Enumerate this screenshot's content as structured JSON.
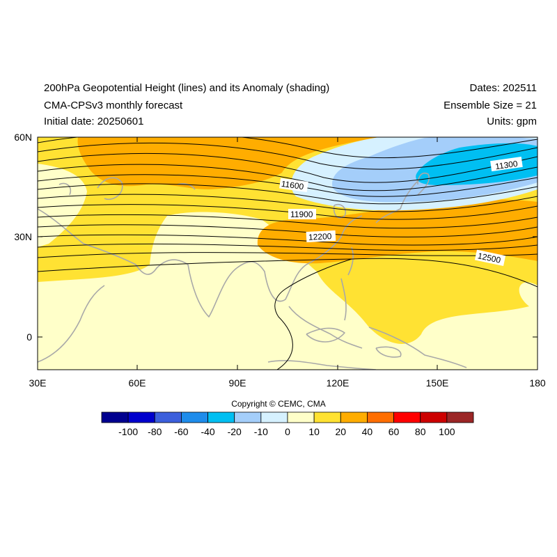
{
  "header": {
    "title": "200hPa Geopotential Height (lines) and its Anomaly (shading)",
    "model": "CMA-CPSv3 monthly forecast",
    "initial_date": "Initial date: 20250601",
    "dates": "Dates: 202511",
    "ensemble": "Ensemble Size = 21",
    "units": "Units: gpm"
  },
  "map": {
    "lon_range": [
      30,
      180
    ],
    "lat_range": [
      -10,
      60
    ],
    "x_ticks": [
      "30E",
      "60E",
      "90E",
      "120E",
      "150E",
      "180"
    ],
    "y_ticks": [
      "60N",
      "30N",
      "0"
    ],
    "contour_labels": [
      "11300",
      "11600",
      "11900",
      "12200",
      "12500"
    ]
  },
  "colorbar": {
    "colors": [
      "#00008f",
      "#0000cd",
      "#3c5fdc",
      "#1e8ceb",
      "#00bff2",
      "#a4cefa",
      "#d6f1ff",
      "#ffffc9",
      "#ffe233",
      "#ffad00",
      "#ff6e00",
      "#ff0000",
      "#cd0000",
      "#9b2626"
    ],
    "labels": [
      "-100",
      "-80",
      "-60",
      "-40",
      "-20",
      "-10",
      "0",
      "10",
      "20",
      "40",
      "60",
      "80",
      "100"
    ]
  },
  "footer": {
    "copyright": "Copyright © CEMC, CMA"
  }
}
